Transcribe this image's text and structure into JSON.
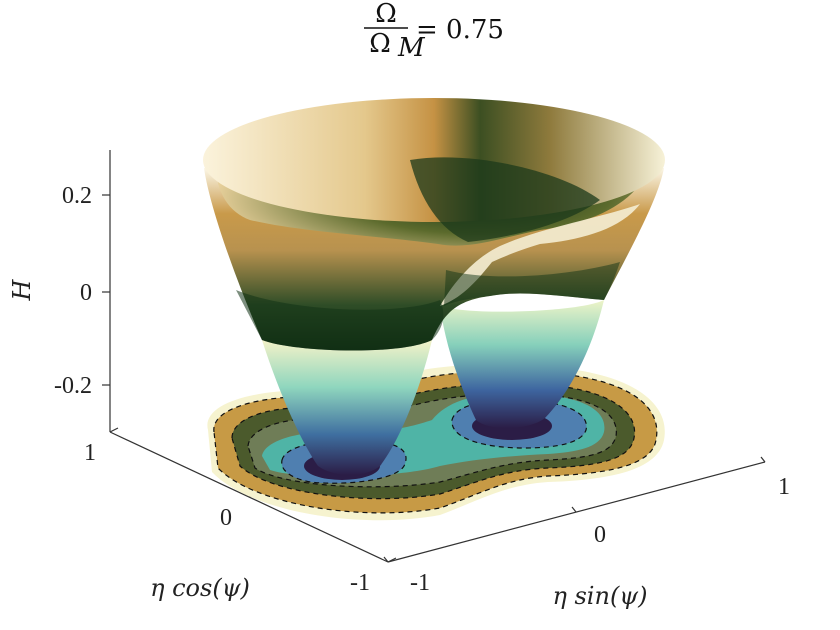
{
  "chart_data": {
    "type": "surface3d",
    "title": {
      "fraction_numerator": "Ω",
      "fraction_denominator": "Ω",
      "denominator_subscript": "M",
      "rhs": "= 0.75"
    },
    "xlabel": "η cos(ψ)",
    "ylabel": "η sin(ψ)",
    "zlabel": "H",
    "xlim": [
      -1,
      1
    ],
    "ylim": [
      -1,
      1
    ],
    "zlim": [
      -0.3,
      0.3
    ],
    "x_ticks": [
      "-1",
      "0",
      "1"
    ],
    "y_ticks": [
      "-1",
      "0",
      "1"
    ],
    "z_ticks": [
      "-0.2",
      "0",
      "0.2"
    ],
    "surface": "double-well potential H(η cos ψ, η sin ψ), two minima near H ≈ -0.3, rim near H ≈ 0.25",
    "contour_projection": "filled contours on the base plane with dashed level lines",
    "colormap": [
      "#2b1d46",
      "#3f5f9a",
      "#4fb4a6",
      "#bfe9c4",
      "#f4f2c8",
      "#2e4a26",
      "#0f2a0f",
      "#3f5a2a",
      "#c99a4a",
      "#efe4c6"
    ],
    "grid": false
  }
}
